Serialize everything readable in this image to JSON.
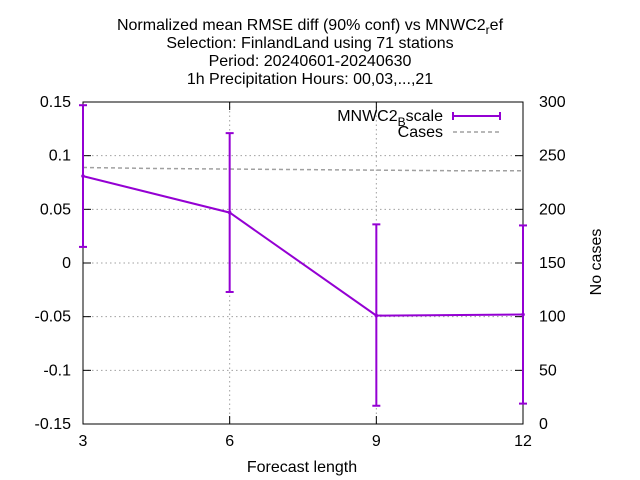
{
  "chart_data": {
    "type": "line",
    "title_lines": [
      "Normalized mean RMSE diff (90% conf) vs MNWC2_ref",
      "Selection: FinlandLand using    71 stations",
      "Period: 20240601-20240630",
      "1h Precipitation   Hours: 00,03,...,21"
    ],
    "xlabel": "Forecast length",
    "ylabel": "",
    "y2label": "No cases",
    "x": [
      3,
      6,
      9,
      12
    ],
    "xlim": [
      3,
      12
    ],
    "ylim": [
      -0.15,
      0.15
    ],
    "y2lim": [
      0,
      300
    ],
    "x_ticks": [
      "3",
      "6",
      "9",
      "12"
    ],
    "y_ticks": [
      "0.15",
      "0.1",
      "0.05",
      "0",
      "-0.05",
      "-0.1",
      "-0.15"
    ],
    "y2_ticks": [
      "300",
      "250",
      "200",
      "150",
      "100",
      "50",
      "0"
    ],
    "grid": true,
    "legend_position": "top-right",
    "series": [
      {
        "name": "MNWC2_Bscale",
        "axis": "y",
        "color": "#9400d3",
        "style": "line-with-errorbars",
        "values": [
          0.081,
          0.047,
          -0.049,
          -0.048
        ],
        "err_low": [
          0.015,
          -0.027,
          -0.133,
          -0.131
        ],
        "err_high": [
          0.147,
          0.121,
          0.036,
          0.035
        ]
      },
      {
        "name": "Cases",
        "axis": "y2",
        "color": "#a0a0a0",
        "style": "dashed",
        "x": [
          3,
          4.5,
          7.5,
          10.5,
          12
        ],
        "values": [
          239,
          238,
          237,
          236,
          236
        ]
      }
    ]
  }
}
